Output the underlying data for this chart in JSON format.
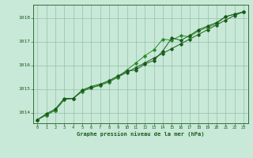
{
  "bg_color": "#c8e8d8",
  "grid_color": "#88b8a0",
  "line_color_dark": "#1a5c1a",
  "line_color_mid": "#2d8a2d",
  "title": "Graphe pression niveau de la mer (hPa)",
  "xlabel_hours": [
    0,
    1,
    2,
    3,
    4,
    5,
    6,
    7,
    8,
    9,
    10,
    11,
    12,
    13,
    14,
    15,
    16,
    17,
    18,
    19,
    20,
    21,
    22,
    23
  ],
  "yticks": [
    1014,
    1015,
    1016,
    1017,
    1018
  ],
  "ylim": [
    1013.55,
    1018.55
  ],
  "xlim": [
    -0.5,
    23.5
  ],
  "series1": [
    1013.7,
    1013.9,
    1014.1,
    1014.55,
    1014.6,
    1014.9,
    1015.05,
    1015.15,
    1015.3,
    1015.5,
    1015.7,
    1015.9,
    1016.1,
    1016.3,
    1016.5,
    1016.7,
    1016.9,
    1017.1,
    1017.3,
    1017.5,
    1017.7,
    1017.9,
    1018.1,
    1018.25
  ],
  "series2": [
    1013.7,
    1013.9,
    1014.1,
    1014.55,
    1014.6,
    1014.9,
    1015.05,
    1015.15,
    1015.3,
    1015.5,
    1015.8,
    1016.1,
    1016.4,
    1016.65,
    1017.1,
    1017.05,
    1017.25,
    1017.2,
    1017.45,
    1017.6,
    1017.75,
    1018.05,
    1018.15,
    1018.25
  ],
  "series3": [
    1013.7,
    1013.95,
    1014.15,
    1014.6,
    1014.6,
    1014.95,
    1015.1,
    1015.2,
    1015.35,
    1015.55,
    1015.75,
    1015.8,
    1016.05,
    1016.2,
    1016.6,
    1017.15,
    1017.05,
    1017.25,
    1017.5,
    1017.65,
    1017.8,
    1018.05,
    1018.15,
    1018.25
  ]
}
